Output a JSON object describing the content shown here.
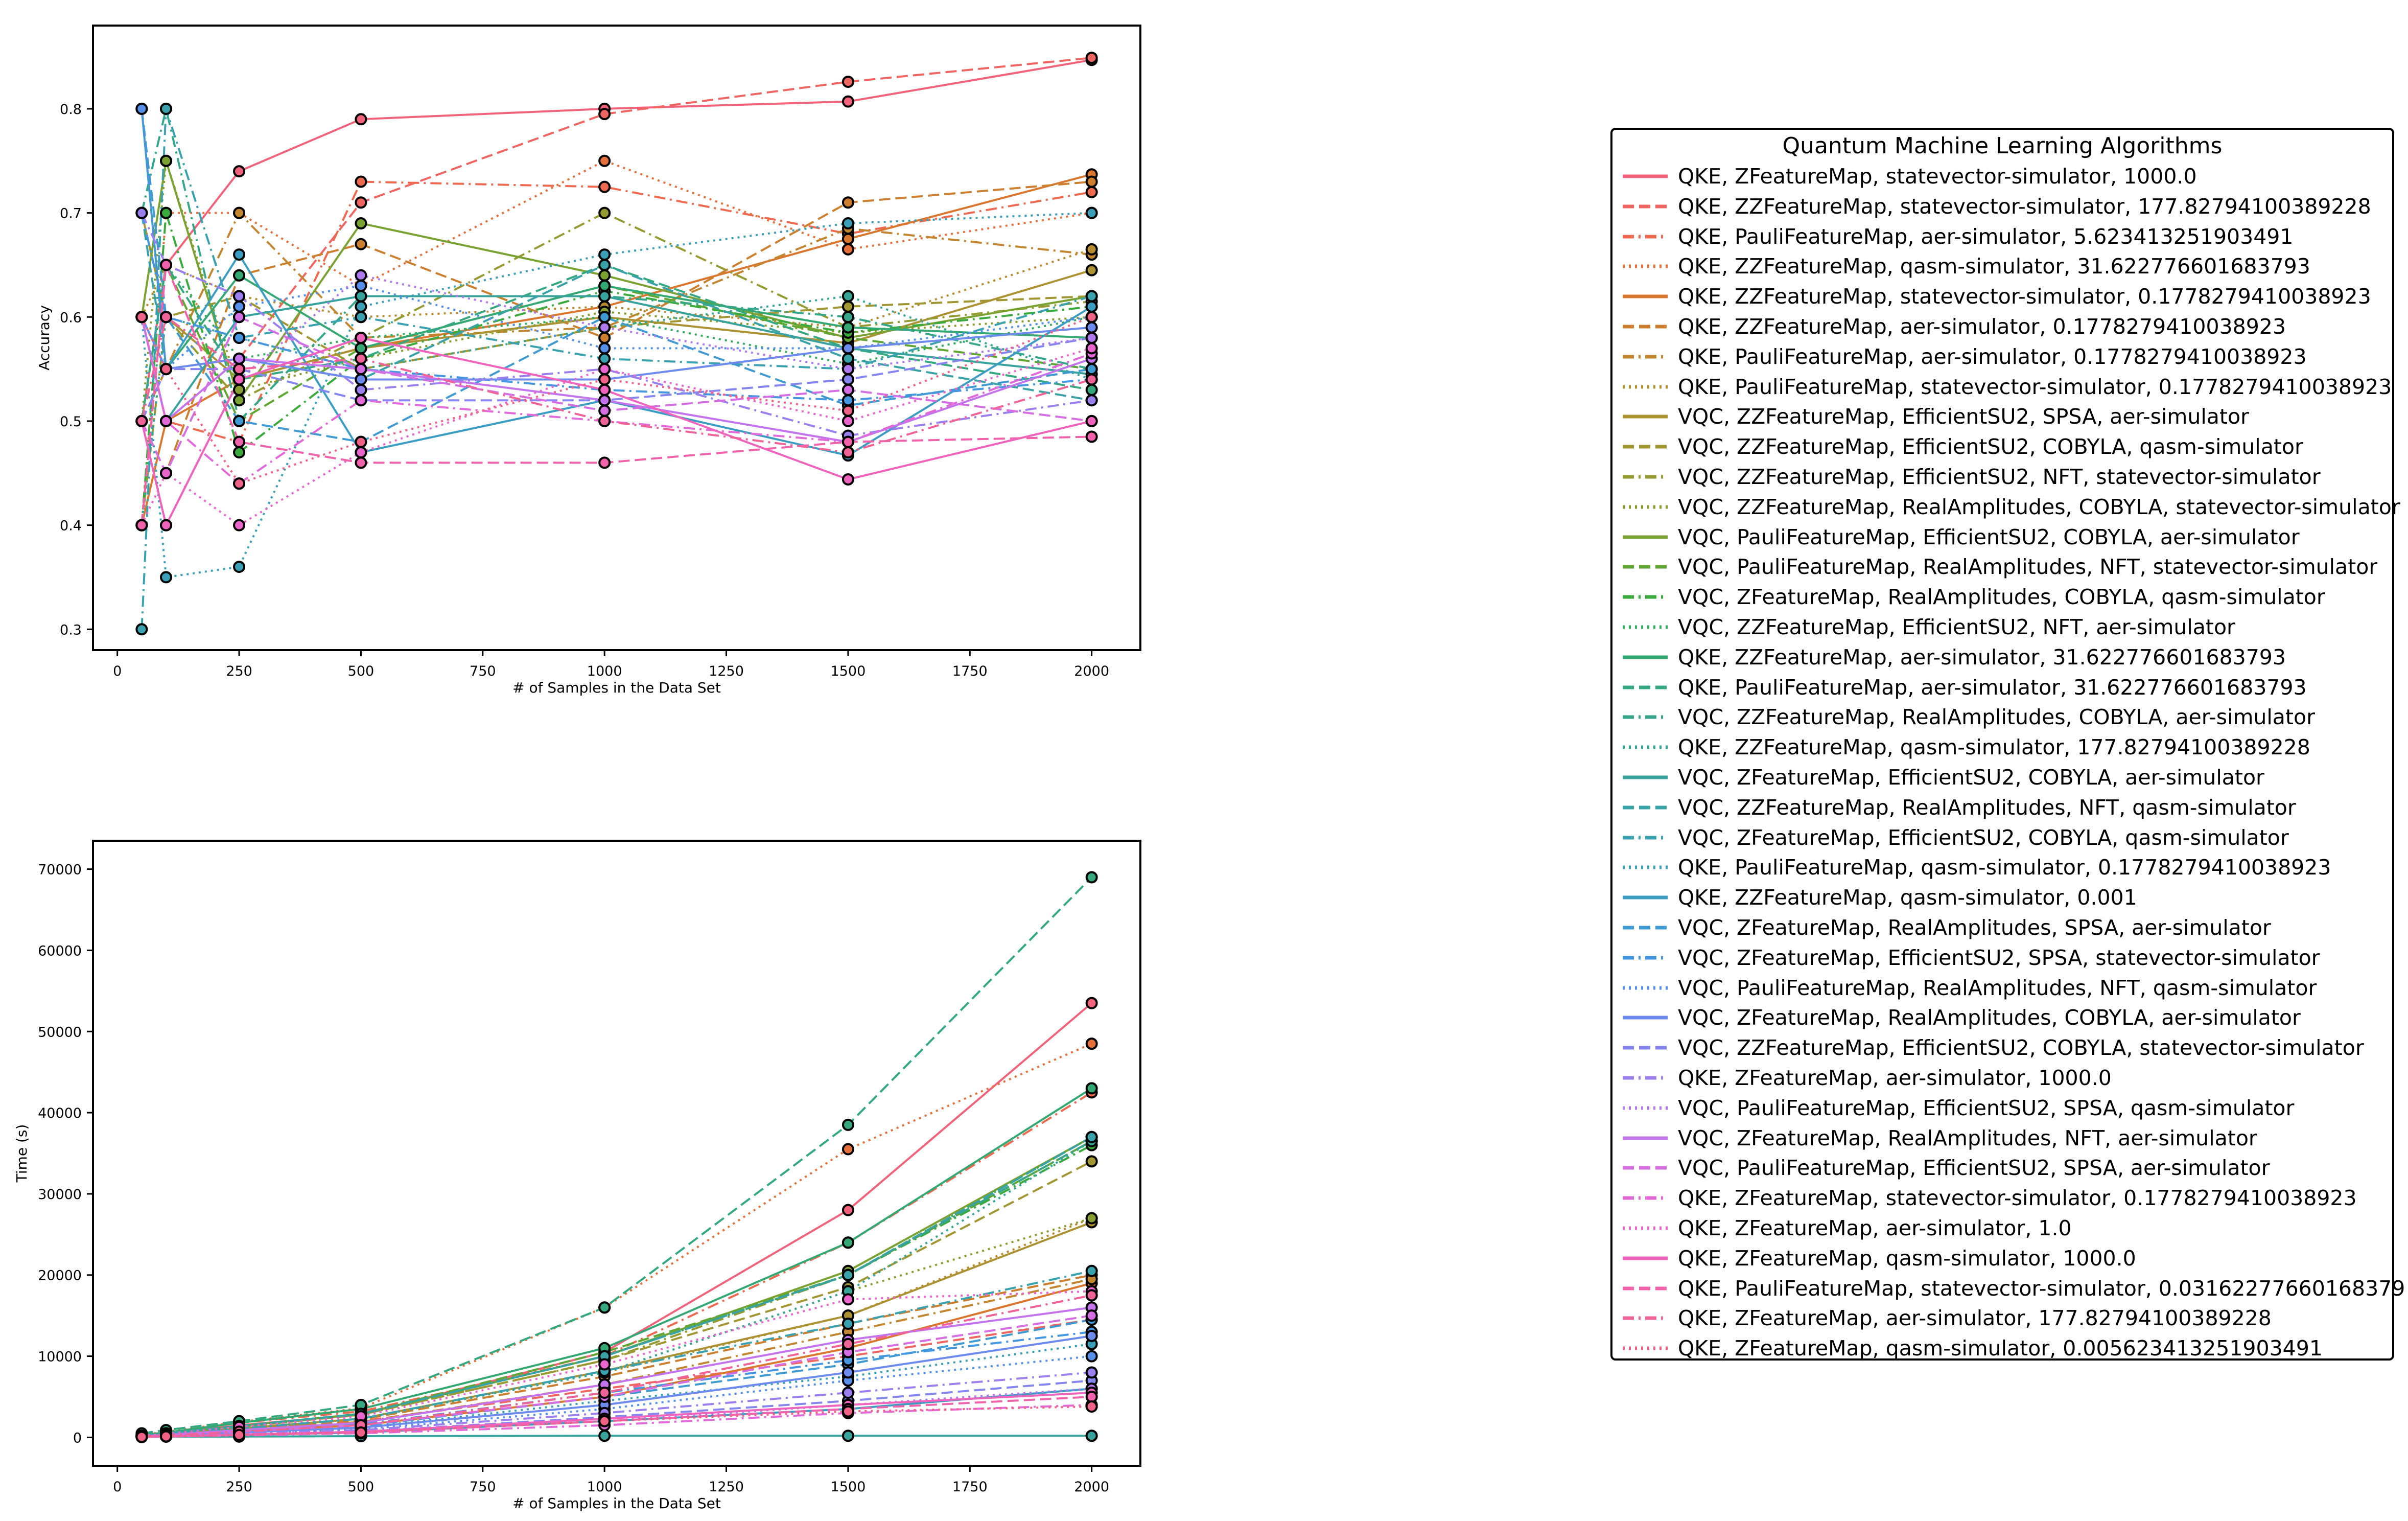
{
  "chart_data": [
    {
      "type": "line",
      "panel": "accuracy",
      "xlabel": "# of Samples in the Data Set",
      "ylabel": "Accuracy",
      "xlim": [
        -50,
        2100
      ],
      "ylim": [
        0.28,
        0.88
      ],
      "xticks": [
        0,
        250,
        500,
        750,
        1000,
        1250,
        1500,
        1750,
        2000
      ],
      "yticks": [
        0.3,
        0.4,
        0.5,
        0.6,
        0.7,
        0.8
      ],
      "x": [
        50,
        100,
        250,
        500,
        1000,
        1500,
        2000
      ],
      "grid": false,
      "series_values": [
        [
          0.5,
          0.65,
          0.74,
          0.79,
          0.8,
          0.807,
          0.847
        ],
        [
          0.5,
          0.55,
          0.56,
          0.71,
          0.795,
          0.826,
          0.849
        ],
        [
          0.6,
          0.5,
          0.48,
          0.73,
          0.725,
          0.68,
          0.72
        ],
        [
          0.4,
          0.7,
          0.7,
          0.63,
          0.75,
          0.665,
          0.7
        ],
        [
          0.4,
          0.5,
          0.54,
          0.57,
          0.61,
          0.675,
          0.737
        ],
        [
          0.5,
          0.45,
          0.64,
          0.67,
          0.58,
          0.71,
          0.73
        ],
        [
          0.5,
          0.55,
          0.7,
          0.58,
          0.59,
          0.685,
          0.66
        ],
        [
          0.6,
          0.65,
          0.62,
          0.6,
          0.61,
          0.59,
          0.665
        ],
        [
          0.7,
          0.6,
          0.54,
          0.57,
          0.6,
          0.575,
          0.645
        ],
        [
          0.7,
          0.6,
          0.62,
          0.55,
          0.59,
          0.61,
          0.62
        ],
        [
          0.4,
          0.6,
          0.52,
          0.58,
          0.7,
          0.59,
          0.615
        ],
        [
          0.5,
          0.75,
          0.53,
          0.56,
          0.605,
          0.585,
          0.6
        ],
        [
          0.6,
          0.75,
          0.52,
          0.69,
          0.64,
          0.58,
          0.62
        ],
        [
          0.5,
          0.65,
          0.5,
          0.57,
          0.63,
          0.58,
          0.55
        ],
        [
          0.4,
          0.7,
          0.47,
          0.56,
          0.625,
          0.585,
          0.61
        ],
        [
          0.4,
          0.65,
          0.56,
          0.58,
          0.6,
          0.555,
          0.6
        ],
        [
          0.6,
          0.55,
          0.64,
          0.57,
          0.63,
          0.59,
          0.58
        ],
        [
          0.5,
          0.65,
          0.54,
          0.56,
          0.65,
          0.57,
          0.53
        ],
        [
          0.7,
          0.8,
          0.5,
          0.62,
          0.62,
          0.6,
          0.55
        ],
        [
          0.4,
          0.6,
          0.58,
          0.55,
          0.59,
          0.62,
          0.54
        ],
        [
          0.6,
          0.5,
          0.6,
          0.62,
          0.62,
          0.57,
          0.545
        ],
        [
          0.7,
          0.55,
          0.56,
          0.54,
          0.65,
          0.56,
          0.52
        ],
        [
          0.3,
          0.8,
          0.58,
          0.6,
          0.56,
          0.55,
          0.62
        ],
        [
          0.6,
          0.35,
          0.36,
          0.61,
          0.66,
          0.69,
          0.7
        ],
        [
          0.8,
          0.55,
          0.66,
          0.47,
          0.52,
          0.467,
          0.61
        ],
        [
          0.8,
          0.6,
          0.5,
          0.48,
          0.6,
          0.515,
          0.55
        ],
        [
          0.7,
          0.6,
          0.58,
          0.55,
          0.53,
          0.52,
          0.54
        ],
        [
          0.8,
          0.55,
          0.61,
          0.63,
          0.57,
          0.57,
          0.6
        ],
        [
          0.6,
          0.55,
          0.56,
          0.54,
          0.54,
          0.57,
          0.59
        ],
        [
          0.5,
          0.55,
          0.55,
          0.52,
          0.52,
          0.54,
          0.58
        ],
        [
          0.7,
          0.65,
          0.62,
          0.53,
          0.55,
          0.486,
          0.52
        ],
        [
          0.5,
          0.4,
          0.54,
          0.64,
          0.59,
          0.55,
          0.58
        ],
        [
          0.6,
          0.5,
          0.56,
          0.55,
          0.52,
          0.48,
          0.56
        ],
        [
          0.5,
          0.45,
          0.6,
          0.55,
          0.51,
          0.53,
          0.5
        ],
        [
          0.6,
          0.5,
          0.44,
          0.52,
          0.5,
          0.48,
          0.565
        ],
        [
          0.4,
          0.45,
          0.4,
          0.47,
          0.55,
          0.5,
          0.57
        ],
        [
          0.5,
          0.4,
          0.54,
          0.58,
          0.53,
          0.444,
          0.5
        ],
        [
          0.4,
          0.65,
          0.48,
          0.46,
          0.46,
          0.48,
          0.485
        ],
        [
          0.5,
          0.6,
          0.55,
          0.56,
          0.5,
          0.47,
          0.54
        ],
        [
          0.6,
          0.55,
          0.44,
          0.48,
          0.54,
          0.51,
          0.6
        ]
      ]
    },
    {
      "type": "line",
      "panel": "time",
      "xlabel": "# of Samples in the Data Set",
      "ylabel": "Time (s)",
      "xlim": [
        -50,
        2100
      ],
      "ylim": [
        -3500,
        73500
      ],
      "xticks": [
        0,
        250,
        500,
        750,
        1000,
        1250,
        1500,
        1750,
        2000
      ],
      "yticks": [
        0,
        10000,
        20000,
        30000,
        40000,
        50000,
        60000,
        70000
      ],
      "x": [
        50,
        100,
        250,
        500,
        1000,
        1500,
        2000
      ],
      "grid": false,
      "series_values": [
        [
          200,
          500,
          1500,
          2800,
          10500,
          28000,
          53500
        ],
        [
          100,
          300,
          1000,
          2000,
          6000,
          10000,
          14500
        ],
        [
          300,
          600,
          1800,
          3200,
          10000,
          24000,
          42500
        ],
        [
          300,
          700,
          1900,
          3600,
          16000,
          35500,
          48500
        ],
        [
          100,
          250,
          800,
          1500,
          5000,
          11000,
          19000
        ],
        [
          150,
          350,
          1100,
          2200,
          7500,
          14000,
          20000
        ],
        [
          120,
          300,
          1000,
          1900,
          6500,
          13000,
          19500
        ],
        [
          150,
          350,
          1100,
          2300,
          8000,
          15000,
          27000
        ],
        [
          150,
          350,
          1100,
          2300,
          8200,
          15000,
          26500
        ],
        [
          200,
          450,
          1300,
          2800,
          9500,
          18500,
          34000
        ],
        [
          200,
          450,
          1300,
          2800,
          9500,
          20000,
          36500
        ],
        [
          150,
          350,
          1100,
          2300,
          8000,
          18000,
          27000
        ],
        [
          200,
          500,
          1400,
          2900,
          10000,
          20500,
          37000
        ],
        [
          200,
          500,
          1400,
          2900,
          10500,
          20000,
          36500
        ],
        [
          200,
          500,
          1400,
          2900,
          10000,
          20000,
          36000
        ],
        [
          200,
          500,
          1400,
          2900,
          10000,
          20000,
          37000
        ],
        [
          300,
          600,
          1800,
          3500,
          11000,
          24000,
          43000
        ],
        [
          500,
          900,
          2000,
          4000,
          16000,
          38500,
          69000
        ],
        [
          200,
          500,
          1400,
          2900,
          10000,
          20000,
          36500
        ],
        [
          150,
          350,
          1100,
          2300,
          8000,
          18000,
          36500
        ],
        [
          50,
          100,
          100,
          150,
          200,
          200,
          200
        ],
        [
          200,
          500,
          1400,
          2900,
          10000,
          20000,
          37000
        ],
        [
          150,
          350,
          1100,
          2300,
          8200,
          14000,
          20500
        ],
        [
          100,
          200,
          600,
          1200,
          4500,
          7500,
          11500
        ],
        [
          50,
          100,
          300,
          600,
          2000,
          3500,
          6000
        ],
        [
          100,
          250,
          700,
          1400,
          5000,
          9000,
          14500
        ],
        [
          120,
          280,
          800,
          1600,
          5500,
          9500,
          13000
        ],
        [
          80,
          200,
          500,
          1000,
          3500,
          7000,
          10000
        ],
        [
          100,
          200,
          600,
          1200,
          4000,
          8000,
          12500
        ],
        [
          60,
          120,
          350,
          700,
          2500,
          4500,
          7000
        ],
        [
          80,
          150,
          450,
          900,
          3000,
          5500,
          8000
        ],
        [
          50,
          100,
          300,
          600,
          2000,
          4000,
          6000
        ],
        [
          150,
          300,
          900,
          1800,
          6500,
          12000,
          16000
        ],
        [
          100,
          250,
          700,
          1500,
          5000,
          10500,
          15000
        ],
        [
          50,
          100,
          250,
          500,
          1500,
          3000,
          4000
        ],
        [
          200,
          450,
          1300,
          2600,
          9000,
          17000,
          18000
        ],
        [
          60,
          120,
          350,
          700,
          2300,
          4000,
          5500
        ],
        [
          50,
          100,
          300,
          600,
          2000,
          3500,
          5000
        ],
        [
          100,
          250,
          700,
          1500,
          5500,
          11500,
          17500
        ],
        [
          60,
          120,
          300,
          600,
          2000,
          3200,
          3800
        ]
      ]
    }
  ],
  "legend": {
    "title": "Quantum Machine Learning Algorithms",
    "placement": "right",
    "entries": [
      {
        "label": "QKE, ZFeatureMap, statevector-simulator, 1000.0",
        "color": "#f0637a",
        "dash": "solid"
      },
      {
        "label": "QKE, ZZFeatureMap, statevector-simulator, 177.82794100389228",
        "color": "#ef6562",
        "dash": "dashed"
      },
      {
        "label": "QKE, PauliFeatureMap, aer-simulator, 5.623413251903491",
        "color": "#ed6a50",
        "dash": "dashdot"
      },
      {
        "label": "QKE, ZZFeatureMap, qasm-simulator, 31.622776601683793",
        "color": "#e5703c",
        "dash": "dotted"
      },
      {
        "label": "QKE, ZZFeatureMap, statevector-simulator, 0.1778279410038923",
        "color": "#d9772f",
        "dash": "solid"
      },
      {
        "label": "QKE, ZZFeatureMap, aer-simulator, 0.1778279410038923",
        "color": "#cd7f30",
        "dash": "dashed"
      },
      {
        "label": "QKE, PauliFeatureMap, aer-simulator, 0.1778279410038923",
        "color": "#c1862f",
        "dash": "dashdot"
      },
      {
        "label": "QKE, PauliFeatureMap, statevector-simulator, 0.1778279410038923",
        "color": "#b78c30",
        "dash": "dotted"
      },
      {
        "label": "VQC, ZZFeatureMap, EfficientSU2, SPSA, aer-simulator",
        "color": "#ac9232",
        "dash": "solid"
      },
      {
        "label": "VQC, ZZFeatureMap, EfficientSU2, COBYLA, qasm-simulator",
        "color": "#a19632",
        "dash": "dashed"
      },
      {
        "label": "VQC, ZZFeatureMap, EfficientSU2, NFT, statevector-simulator",
        "color": "#959a31",
        "dash": "dashdot"
      },
      {
        "label": "VQC, ZZFeatureMap, RealAmplitudes, COBYLA, statevector-simulator",
        "color": "#889e30",
        "dash": "dotted"
      },
      {
        "label": "VQC, PauliFeatureMap, EfficientSU2, COBYLA, aer-simulator",
        "color": "#79a232",
        "dash": "solid"
      },
      {
        "label": "VQC, PauliFeatureMap, RealAmplitudes, NFT, statevector-simulator",
        "color": "#5fa732",
        "dash": "dashed"
      },
      {
        "label": "VQC, ZFeatureMap, RealAmplitudes, COBYLA, qasm-simulator",
        "color": "#3aaa3c",
        "dash": "dashdot"
      },
      {
        "label": "VQC, ZZFeatureMap, EfficientSU2, NFT, aer-simulator",
        "color": "#33ab5e",
        "dash": "dotted"
      },
      {
        "label": "QKE, ZZFeatureMap, aer-simulator, 31.622776601683793",
        "color": "#34a872",
        "dash": "solid"
      },
      {
        "label": "QKE, PauliFeatureMap, aer-simulator, 31.622776601683793",
        "color": "#35a880",
        "dash": "dashed"
      },
      {
        "label": "VQC, ZZFeatureMap, RealAmplitudes, COBYLA, aer-simulator",
        "color": "#36a68b",
        "dash": "dashdot"
      },
      {
        "label": "QKE, ZZFeatureMap, qasm-simulator, 177.82794100389228",
        "color": "#37a595",
        "dash": "dotted"
      },
      {
        "label": "VQC, ZFeatureMap, EfficientSU2, COBYLA, aer-simulator",
        "color": "#38a39d",
        "dash": "solid"
      },
      {
        "label": "VQC, ZZFeatureMap, RealAmplitudes, NFT, qasm-simulator",
        "color": "#39a2a6",
        "dash": "dashed"
      },
      {
        "label": "VQC, ZFeatureMap, EfficientSU2, COBYLA, qasm-simulator",
        "color": "#3aa1ae",
        "dash": "dashdot"
      },
      {
        "label": "QKE, PauliFeatureMap, qasm-simulator, 0.1778279410038923",
        "color": "#3b9fb7",
        "dash": "dotted"
      },
      {
        "label": "QKE, ZZFeatureMap, qasm-simulator, 0.001",
        "color": "#3c9dc2",
        "dash": "solid"
      },
      {
        "label": "VQC, ZFeatureMap, RealAmplitudes, SPSA, aer-simulator",
        "color": "#3e9ad0",
        "dash": "dashed"
      },
      {
        "label": "VQC, ZFeatureMap, EfficientSU2, SPSA, statevector-simulator",
        "color": "#4496e0",
        "dash": "dashdot"
      },
      {
        "label": "VQC, PauliFeatureMap, RealAmplitudes, NFT, qasm-simulator",
        "color": "#5690ea",
        "dash": "dotted"
      },
      {
        "label": "VQC, ZFeatureMap, RealAmplitudes, COBYLA, aer-simulator",
        "color": "#6d8bed",
        "dash": "solid"
      },
      {
        "label": "VQC, ZZFeatureMap, EfficientSU2, COBYLA, statevector-simulator",
        "color": "#8585ef",
        "dash": "dashed"
      },
      {
        "label": "QKE, ZFeatureMap, aer-simulator, 1000.0",
        "color": "#9b7fee",
        "dash": "dashdot"
      },
      {
        "label": "VQC, PauliFeatureMap, EfficientSU2, SPSA, qasm-simulator",
        "color": "#b07aee",
        "dash": "dotted"
      },
      {
        "label": "VQC, ZFeatureMap, RealAmplitudes, NFT, aer-simulator",
        "color": "#c373eb",
        "dash": "solid"
      },
      {
        "label": "VQC, PauliFeatureMap, EfficientSU2, SPSA, aer-simulator",
        "color": "#d56ee3",
        "dash": "dashed"
      },
      {
        "label": "QKE, ZFeatureMap, statevector-simulator, 0.1778279410038923",
        "color": "#e269d8",
        "dash": "dashdot"
      },
      {
        "label": "QKE, ZFeatureMap, aer-simulator, 1.0",
        "color": "#ea66cc",
        "dash": "dotted"
      },
      {
        "label": "QKE, ZFeatureMap, qasm-simulator, 1000.0",
        "color": "#ef63bd",
        "dash": "solid"
      },
      {
        "label": "QKE, PauliFeatureMap, statevector-simulator, 0.03162277660168379",
        "color": "#f062ac",
        "dash": "dashed"
      },
      {
        "label": "QKE, ZFeatureMap, aer-simulator, 177.82794100389228",
        "color": "#f06398",
        "dash": "dashdot"
      },
      {
        "label": "QKE, ZFeatureMap, qasm-simulator, 0.005623413251903491",
        "color": "#f06386",
        "dash": "dotted"
      }
    ]
  }
}
